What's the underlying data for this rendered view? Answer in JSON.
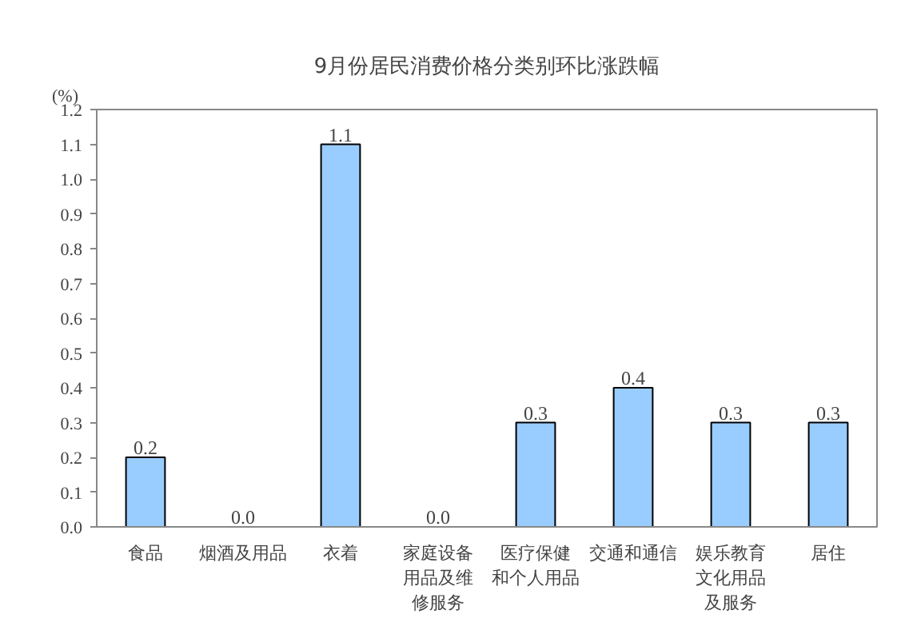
{
  "chart_data": {
    "type": "bar",
    "title": "9月份居民消费价格分类别环比涨跌幅",
    "ylabel": "(%)",
    "categories": [
      "食品",
      "烟酒及用品",
      "衣着",
      "家庭设备用品及维修服务",
      "医疗保健和个人用品",
      "交通和通信",
      "娱乐教育文化用品及服务",
      "居住"
    ],
    "values": [
      0.2,
      0.0,
      1.1,
      0.0,
      0.3,
      0.4,
      0.3,
      0.3
    ],
    "value_labels": [
      "0.2",
      "0.0",
      "1.1",
      "0.0",
      "0.3",
      "0.4",
      "0.3",
      "0.3"
    ],
    "color": "#99ccff",
    "grid": false,
    "ylim": [
      0,
      1.2
    ],
    "yticks": [
      "0.0",
      "0.1",
      "0.2",
      "0.3",
      "0.4",
      "0.5",
      "0.6",
      "0.7",
      "0.8",
      "0.9",
      "1.0",
      "1.1",
      "1.2"
    ]
  }
}
